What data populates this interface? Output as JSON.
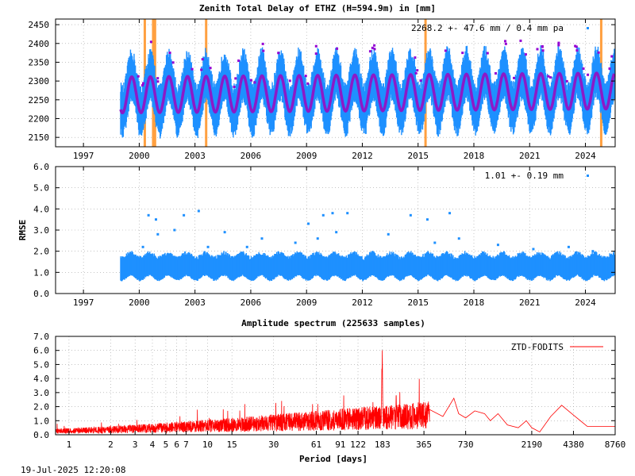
{
  "footer_timestamp": "19-Jul-2025 12:20:08",
  "chart_data": [
    {
      "type": "scatter",
      "title": "Zenith Total Delay of ETHZ (H=594.9m) in [mm]",
      "annotation": "2268.2 +-  47.6 mm /  0.4 mm pa",
      "xlabel": "",
      "ylabel": "",
      "xlim": [
        1995.5,
        2025.6
      ],
      "ylim": [
        2125,
        2465
      ],
      "x_ticks": [
        1997,
        2000,
        2003,
        2006,
        2009,
        2012,
        2015,
        2018,
        2021,
        2024
      ],
      "x_tick_labels": [
        "1997",
        "2000",
        "2003",
        "2006",
        "2009",
        "2012",
        "2015",
        "2018",
        "2021",
        "2024"
      ],
      "y_ticks": [
        2150,
        2200,
        2250,
        2300,
        2350,
        2400,
        2450
      ],
      "y_tick_labels": [
        "2150",
        "2200",
        "2250",
        "2300",
        "2350",
        "2400",
        "2450"
      ],
      "data_start": 1999.0,
      "data_end": 2025.55,
      "mean": 2268.2,
      "std": 47.6,
      "trend_per_year": 0.4,
      "seasonal_amplitude": 48,
      "scatter_amplitude": 55,
      "events": [
        2000.3,
        2000.75,
        2000.85,
        2003.6,
        2015.4,
        2024.85
      ],
      "colors": {
        "data": "#1e90ff",
        "model": "#8b1ac8",
        "outlier": "#9400d3",
        "events": "#ffa040"
      }
    },
    {
      "type": "scatter",
      "title": "",
      "annotation": "1.01 +-  0.19 mm",
      "ylabel": "RMSE",
      "xlim": [
        1995.5,
        2025.6
      ],
      "ylim": [
        0,
        6
      ],
      "x_ticks": [
        1997,
        2000,
        2003,
        2006,
        2009,
        2012,
        2015,
        2018,
        2021,
        2024
      ],
      "x_tick_labels": [
        "1997",
        "2000",
        "2003",
        "2006",
        "2009",
        "2012",
        "2015",
        "2018",
        "2021",
        "2024"
      ],
      "y_ticks": [
        0,
        1,
        2,
        3,
        4,
        5,
        6
      ],
      "y_tick_labels": [
        "0.0",
        "1.0",
        "2.0",
        "3.0",
        "4.0",
        "5.0",
        "6.0"
      ],
      "band_low": 0.7,
      "band_high": 1.7,
      "outliers": [
        [
          2000.2,
          2.2
        ],
        [
          2000.5,
          3.7
        ],
        [
          2000.9,
          3.5
        ],
        [
          2001.0,
          2.8
        ],
        [
          2001.9,
          3.0
        ],
        [
          2002.4,
          3.7
        ],
        [
          2003.2,
          3.9
        ],
        [
          2003.7,
          2.2
        ],
        [
          2004.6,
          2.9
        ],
        [
          2005.8,
          2.2
        ],
        [
          2006.6,
          2.6
        ],
        [
          2008.4,
          2.4
        ],
        [
          2009.1,
          3.3
        ],
        [
          2009.6,
          2.6
        ],
        [
          2009.9,
          3.7
        ],
        [
          2010.4,
          3.8
        ],
        [
          2010.6,
          2.9
        ],
        [
          2011.2,
          3.8
        ],
        [
          2013.4,
          2.8
        ],
        [
          2014.6,
          3.7
        ],
        [
          2015.5,
          3.5
        ],
        [
          2015.9,
          2.4
        ],
        [
          2016.7,
          3.8
        ],
        [
          2017.2,
          2.6
        ],
        [
          2019.3,
          2.3
        ],
        [
          2021.2,
          2.1
        ],
        [
          2023.1,
          2.2
        ],
        [
          2024.4,
          2.0
        ]
      ],
      "colors": {
        "data": "#1e90ff"
      }
    },
    {
      "type": "line",
      "title": "Amplitude spectrum (225633 samples)",
      "xlabel": "Period [days]",
      "ylabel": "",
      "legend": "ZTD-FODITS",
      "legend_position": "top-right",
      "x_scale": "log",
      "xlim": [
        0.8,
        8760
      ],
      "ylim": [
        0,
        7
      ],
      "x_ticks": [
        1,
        2,
        3,
        4,
        5,
        6,
        7,
        10,
        15,
        30,
        61,
        91,
        122,
        183,
        365,
        730,
        2190,
        4380,
        8760
      ],
      "x_tick_labels": [
        "1",
        "2",
        "3",
        "4",
        "5",
        "6",
        "7",
        "10",
        "15",
        "30",
        "61",
        "91",
        "122",
        "183",
        "365",
        "730",
        "2190",
        "4380",
        "8760"
      ],
      "y_ticks": [
        0,
        1,
        2,
        3,
        4,
        5,
        6,
        7
      ],
      "y_tick_labels": [
        "0.0",
        "1.0",
        "2.0",
        "3.0",
        "4.0",
        "5.0",
        "6.0",
        "7.0"
      ],
      "peaks": [
        [
          182.6,
          6.1
        ],
        [
          181.5,
          5.1
        ],
        [
          230,
          3.1
        ],
        [
          600,
          2.6
        ],
        [
          365,
          1.2
        ]
      ],
      "tail": [
        [
          400,
          1.8
        ],
        [
          500,
          1.3
        ],
        [
          600,
          2.6
        ],
        [
          650,
          1.5
        ],
        [
          730,
          1.2
        ],
        [
          850,
          1.7
        ],
        [
          1000,
          1.5
        ],
        [
          1100,
          1.0
        ],
        [
          1250,
          1.5
        ],
        [
          1460,
          0.7
        ],
        [
          1750,
          0.5
        ],
        [
          2000,
          1.0
        ],
        [
          2190,
          0.5
        ],
        [
          2500,
          0.2
        ],
        [
          3000,
          1.3
        ],
        [
          3600,
          2.1
        ],
        [
          4380,
          1.4
        ],
        [
          5500,
          0.6
        ],
        [
          8760,
          0.6
        ]
      ],
      "colors": {
        "line": "#ff0000"
      }
    }
  ]
}
